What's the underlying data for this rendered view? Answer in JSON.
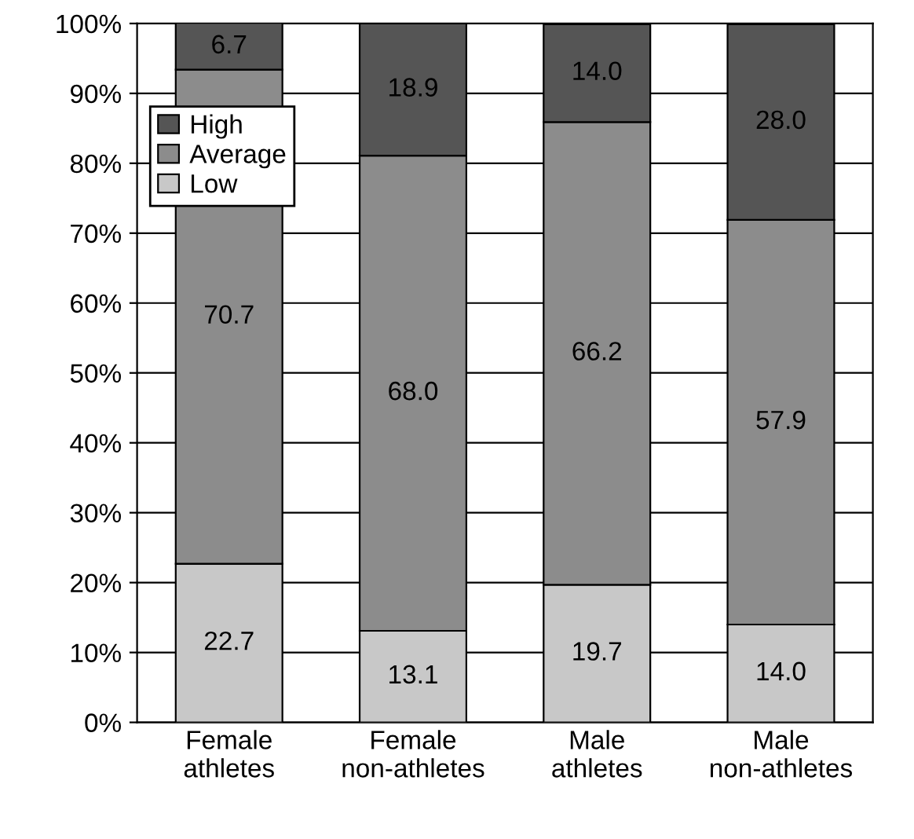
{
  "chart_data": {
    "type": "bar",
    "stacked": true,
    "categories": [
      "Female\nathletes",
      "Female\nnon-athletes",
      "Male\nathletes",
      "Male\nnon-athletes"
    ],
    "series": [
      {
        "name": "Low",
        "color": "#c8c8c8",
        "values": [
          22.7,
          13.1,
          19.7,
          14.0
        ],
        "value_labels": [
          "22.7",
          "13.1",
          "19.7",
          "14.0"
        ]
      },
      {
        "name": "Average",
        "color": "#8c8c8c",
        "values": [
          70.7,
          68.0,
          66.2,
          57.9
        ],
        "value_labels": [
          "70.7",
          "68.0",
          "66.2",
          "57.9"
        ]
      },
      {
        "name": "High",
        "color": "#555555",
        "values": [
          6.7,
          18.9,
          14.0,
          28.0
        ],
        "value_labels": [
          "6.7",
          "18.9",
          "14.0",
          "28.0"
        ]
      }
    ],
    "ylim": [
      0,
      100
    ],
    "yticks": [
      {
        "value": 0,
        "label": "0%"
      },
      {
        "value": 10,
        "label": "10%"
      },
      {
        "value": 20,
        "label": "20%"
      },
      {
        "value": 30,
        "label": "30%"
      },
      {
        "value": 40,
        "label": "40%"
      },
      {
        "value": 50,
        "label": "50%"
      },
      {
        "value": 60,
        "label": "60%"
      },
      {
        "value": 70,
        "label": "70%"
      },
      {
        "value": 80,
        "label": "80%"
      },
      {
        "value": 90,
        "label": "90%"
      },
      {
        "value": 100,
        "label": "100%"
      }
    ],
    "grid": "y",
    "legend": "top left"
  }
}
